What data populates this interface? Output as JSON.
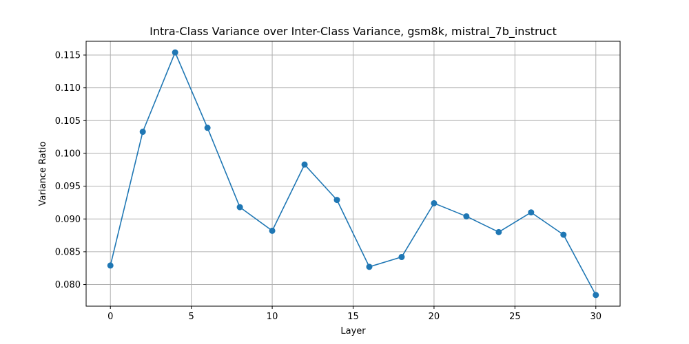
{
  "chart_data": {
    "type": "line",
    "title": "Intra-Class Variance over Inter-Class Variance, gsm8k, mistral_7b_instruct",
    "xlabel": "Layer",
    "ylabel": "Variance Ratio",
    "xlim": [
      -1.5,
      31.5
    ],
    "ylim": [
      0.0767,
      0.1171
    ],
    "xticks": [
      0,
      5,
      10,
      15,
      20,
      25,
      30
    ],
    "xtick_labels": [
      "0",
      "5",
      "10",
      "15",
      "20",
      "25",
      "30"
    ],
    "yticks": [
      0.08,
      0.085,
      0.09,
      0.095,
      0.1,
      0.105,
      0.11,
      0.115
    ],
    "ytick_labels": [
      "0.080",
      "0.085",
      "0.090",
      "0.095",
      "0.100",
      "0.105",
      "0.110",
      "0.115"
    ],
    "grid": true,
    "series": [
      {
        "color": "#1f77b4",
        "marker": "circle",
        "x": [
          0,
          2,
          4,
          6,
          8,
          10,
          12,
          14,
          16,
          18,
          20,
          22,
          24,
          26,
          28,
          30
        ],
        "y": [
          0.0829,
          0.1033,
          0.1154,
          0.1039,
          0.0918,
          0.0882,
          0.0983,
          0.0929,
          0.0827,
          0.0842,
          0.0924,
          0.0904,
          0.088,
          0.091,
          0.0876,
          0.0784
        ]
      }
    ]
  }
}
